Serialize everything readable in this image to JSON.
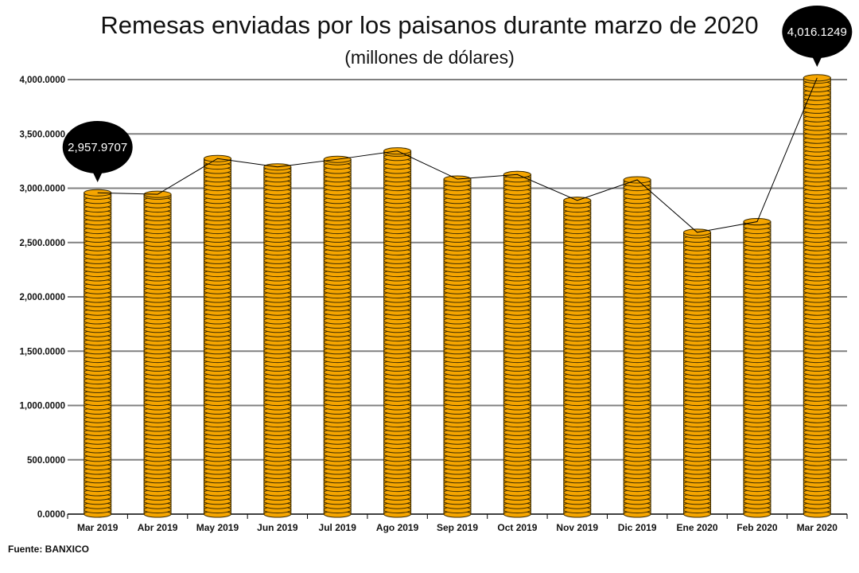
{
  "chart_data": {
    "type": "bar",
    "title": "Remesas enviadas por los paisanos durante marzo de 2020",
    "subtitle": "(millones de dólares)",
    "xlabel": "",
    "ylabel": "",
    "categories": [
      "Mar 2019",
      "Abr 2019",
      "May 2019",
      "Jun 2019",
      "Jul 2019",
      "Ago 2019",
      "Sep 2019",
      "Oct 2019",
      "Nov 2019",
      "Dic 2019",
      "Ene 2020",
      "Feb 2020",
      "Mar 2020"
    ],
    "values": [
      2957.9707,
      2944,
      3273,
      3196,
      3266,
      3343,
      3084,
      3126,
      2888,
      3077,
      2594,
      2692,
      4016.1249
    ],
    "ylim": [
      0,
      4000
    ],
    "yticks": [
      0,
      500,
      1000,
      1500,
      2000,
      2500,
      3000,
      3500,
      4000
    ],
    "ytick_labels": [
      "0.0000",
      "500.0000",
      "1,000.0000",
      "1,500.0000",
      "2,000.0000",
      "2,500.0000",
      "3,000.0000",
      "3,500.0000",
      "4,000.0000"
    ],
    "annotations": [
      {
        "category": "Mar 2019",
        "text": "2,957.9707"
      },
      {
        "category": "Mar 2020",
        "text": "4,016.1249"
      }
    ],
    "grid": true,
    "line_overlay": true,
    "bar_style": "coin-stacks",
    "colors": {
      "coin": "#f5a500",
      "coin_edge": "#3a2a00",
      "grid": "#808080",
      "bubble": "#000000"
    }
  },
  "source": "Fuente: BANXICO"
}
